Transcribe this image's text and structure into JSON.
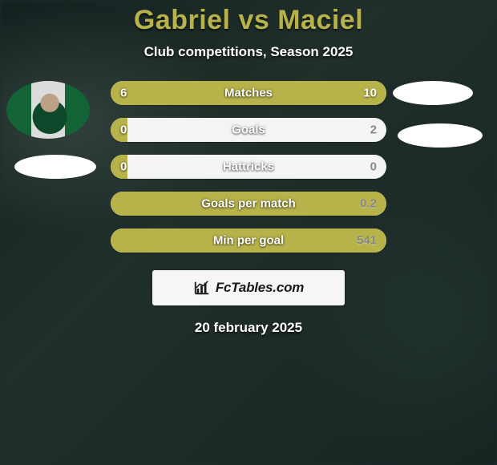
{
  "header": {
    "title": "Gabriel vs Maciel",
    "subtitle": "Club competitions, Season 2025"
  },
  "colors": {
    "accent_left": "#b7b24a",
    "accent_right": "#b7b24a",
    "bar_bg": "rgba(255,255,255,0.95)",
    "title_color": "#b7b24a",
    "text_light": "#ffffff"
  },
  "players": {
    "left": {
      "name": "Gabriel",
      "has_photo": true
    },
    "right": {
      "name": "Maciel",
      "has_photo": false
    }
  },
  "stats": [
    {
      "label": "Matches",
      "left_value": "6",
      "right_value": "10",
      "left_pct": 37.5,
      "right_pct": 62.5
    },
    {
      "label": "Goals",
      "left_value": "0",
      "right_value": "2",
      "left_pct": 6,
      "right_pct": 0
    },
    {
      "label": "Hattricks",
      "left_value": "0",
      "right_value": "0",
      "left_pct": 6,
      "right_pct": 0
    },
    {
      "label": "Goals per match",
      "left_value": "",
      "right_value": "0.2",
      "left_pct": 100,
      "right_pct": 0
    },
    {
      "label": "Min per goal",
      "left_value": "",
      "right_value": "541",
      "left_pct": 100,
      "right_pct": 0
    }
  ],
  "watermark": {
    "text": "FcTables.com"
  },
  "footer": {
    "date": "20 february 2025"
  }
}
